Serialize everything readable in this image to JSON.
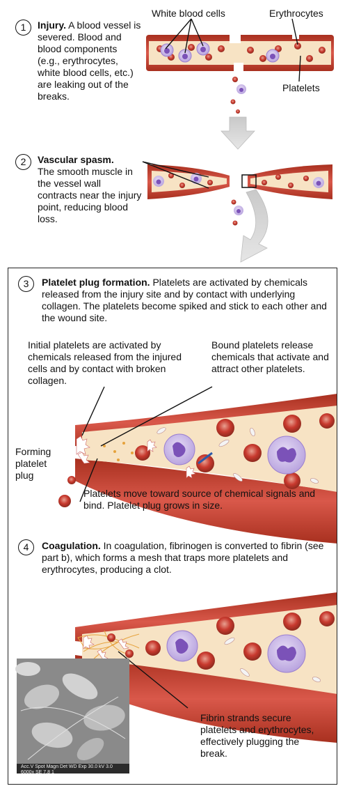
{
  "steps": [
    {
      "number": "1",
      "title": "Injury.",
      "body": "A blood vessel is severed. Blood and blood components (e.g., erythrocytes, white blood cells, etc.) are leaking out of the breaks."
    },
    {
      "number": "2",
      "title": "Vascular spasm.",
      "body": "The smooth muscle in the vessel wall contracts near the injury point, reducing blood loss."
    },
    {
      "number": "3",
      "title": "Platelet plug formation.",
      "body": "Platelets are activated by chemicals released from the injury site and by contact with underlying collagen. The platelets become spiked and stick to each other and the wound site."
    },
    {
      "number": "4",
      "title": "Coagulation.",
      "body": "In coagulation, fibrinogen is converted to fibrin (see part b), which forms a mesh that traps more platelets and erythrocytes, producing a clot."
    }
  ],
  "labels": {
    "white_blood_cells": "White blood cells",
    "erythrocytes": "Erythrocytes",
    "platelets": "Platelets",
    "initial_platelets": "Initial platelets are activated by chemicals released from the injured cells and by contact with broken collagen.",
    "bound_platelets": "Bound platelets release chemicals that activate and attract other platelets.",
    "forming_plug": "Forming platelet plug",
    "platelets_move": "Platelets move toward source of chemical signals and bind. Platelet plug grows in size.",
    "fibrin_strands": "Fibrin strands secure platelets and erythrocytes, effectively plugging the break."
  },
  "micrograph_caption": "Acc.V Spot Magn Det WD Exp 30.0 kV 3.0 6000x SE 7.8 1",
  "colors": {
    "vessel_wall": "#c0392b",
    "vessel_dark": "#8e2a1e",
    "lumen": "#f7e3c4",
    "rbc": "#c8392e",
    "wbc": "#8f6fc7",
    "arrow_gray": "#d4d4d4"
  }
}
